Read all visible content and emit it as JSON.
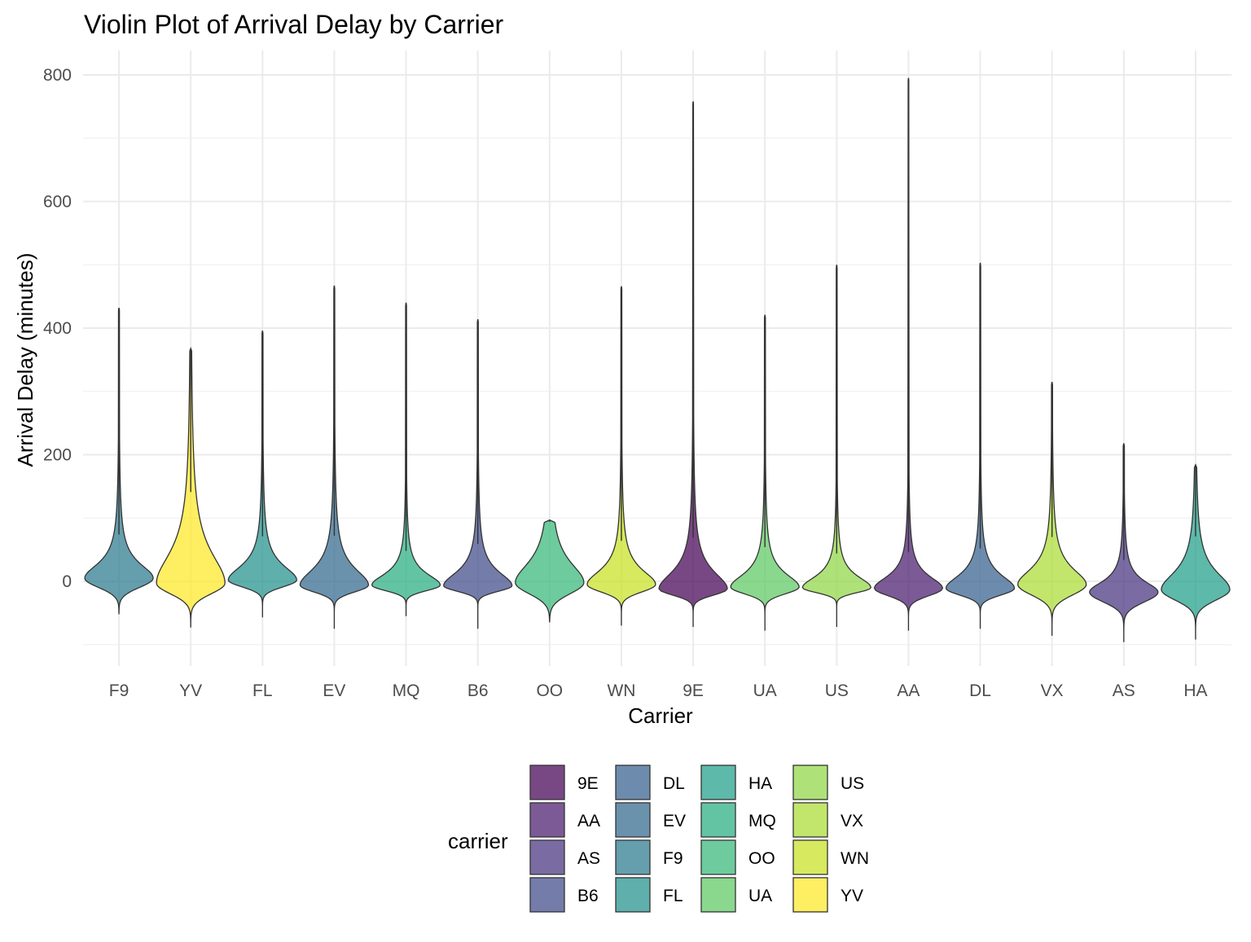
{
  "chart_data": {
    "type": "violin",
    "title": "Violin Plot of Arrival Delay by Carrier",
    "xlabel": "Carrier",
    "ylabel": "Arrival Delay (minutes)",
    "ylim": [
      -100,
      830
    ],
    "yticks": [
      0,
      200,
      400,
      600,
      800
    ],
    "grid": true,
    "legend_position": "bottom",
    "legend_title": "carrier",
    "categories": [
      "F9",
      "YV",
      "FL",
      "EV",
      "MQ",
      "B6",
      "OO",
      "WN",
      "9E",
      "UA",
      "US",
      "AA",
      "DL",
      "VX",
      "AS",
      "HA"
    ],
    "series": [
      {
        "carrier": "F9",
        "color": "#2A788E",
        "min": -52,
        "max": 432,
        "q1": -10,
        "median": 6,
        "q3": 28,
        "mode": 5
      },
      {
        "carrier": "YV",
        "color": "#FDE725",
        "min": -73,
        "max": 368,
        "q1": -20,
        "median": -3,
        "q3": 45,
        "mode": -3
      },
      {
        "carrier": "FL",
        "color": "#21908C",
        "min": -57,
        "max": 396,
        "q1": -9,
        "median": 2,
        "q3": 25,
        "mode": 2
      },
      {
        "carrier": "EV",
        "color": "#31688E",
        "min": -75,
        "max": 467,
        "q1": -17,
        "median": -6,
        "q3": 20,
        "mode": -6
      },
      {
        "carrier": "MQ",
        "color": "#27AD81",
        "min": -55,
        "max": 440,
        "q1": -15,
        "median": -6,
        "q3": 12,
        "mode": -6
      },
      {
        "carrier": "B6",
        "color": "#3E4A89",
        "min": -75,
        "max": 414,
        "q1": -16,
        "median": -7,
        "q3": 15,
        "mode": -7
      },
      {
        "carrier": "OO",
        "color": "#35B779",
        "min": -65,
        "max": 97,
        "q1": -20,
        "median": -2,
        "q3": 30,
        "mode": -2
      },
      {
        "carrier": "WN",
        "color": "#C8E020",
        "min": -70,
        "max": 466,
        "q1": -17,
        "median": -5,
        "q3": 18,
        "mode": -5
      },
      {
        "carrier": "9E",
        "color": "#440154",
        "min": -72,
        "max": 758,
        "q1": -22,
        "median": -12,
        "q3": 15,
        "mode": -12
      },
      {
        "carrier": "UA",
        "color": "#5DC863",
        "min": -78,
        "max": 421,
        "q1": -20,
        "median": -9,
        "q3": 12,
        "mode": -9
      },
      {
        "carrier": "US",
        "color": "#8FD744",
        "min": -72,
        "max": 500,
        "q1": -18,
        "median": -10,
        "q3": 8,
        "mode": -10
      },
      {
        "carrier": "AA",
        "color": "#481B6D",
        "min": -78,
        "max": 795,
        "q1": -23,
        "median": -11,
        "q3": 8,
        "mode": -11
      },
      {
        "carrier": "DL",
        "color": "#355F8D",
        "min": -75,
        "max": 503,
        "q1": -22,
        "median": -11,
        "q3": 10,
        "mode": -11
      },
      {
        "carrier": "VX",
        "color": "#AADC32",
        "min": -86,
        "max": 315,
        "q1": -22,
        "median": -5,
        "q3": 20,
        "mode": -5
      },
      {
        "carrier": "AS",
        "color": "#46327E",
        "min": -96,
        "max": 218,
        "q1": -33,
        "median": -17,
        "q3": 0,
        "mode": -17
      },
      {
        "carrier": "HA",
        "color": "#1F9E89",
        "min": -92,
        "max": 184,
        "q1": -30,
        "median": -13,
        "q3": 15,
        "mode": -13
      }
    ],
    "legend_items": [
      {
        "label": "9E",
        "color": "#440154"
      },
      {
        "label": "AA",
        "color": "#481B6D"
      },
      {
        "label": "AS",
        "color": "#46327E"
      },
      {
        "label": "B6",
        "color": "#3E4A89"
      },
      {
        "label": "DL",
        "color": "#355F8D"
      },
      {
        "label": "EV",
        "color": "#31688E"
      },
      {
        "label": "F9",
        "color": "#2A788E"
      },
      {
        "label": "FL",
        "color": "#21908C"
      },
      {
        "label": "HA",
        "color": "#1F9E89"
      },
      {
        "label": "MQ",
        "color": "#27AD81"
      },
      {
        "label": "OO",
        "color": "#35B779"
      },
      {
        "label": "UA",
        "color": "#5DC863"
      },
      {
        "label": "US",
        "color": "#8FD744"
      },
      {
        "label": "VX",
        "color": "#AADC32"
      },
      {
        "label": "WN",
        "color": "#C8E020"
      },
      {
        "label": "YV",
        "color": "#FDE725"
      }
    ]
  }
}
